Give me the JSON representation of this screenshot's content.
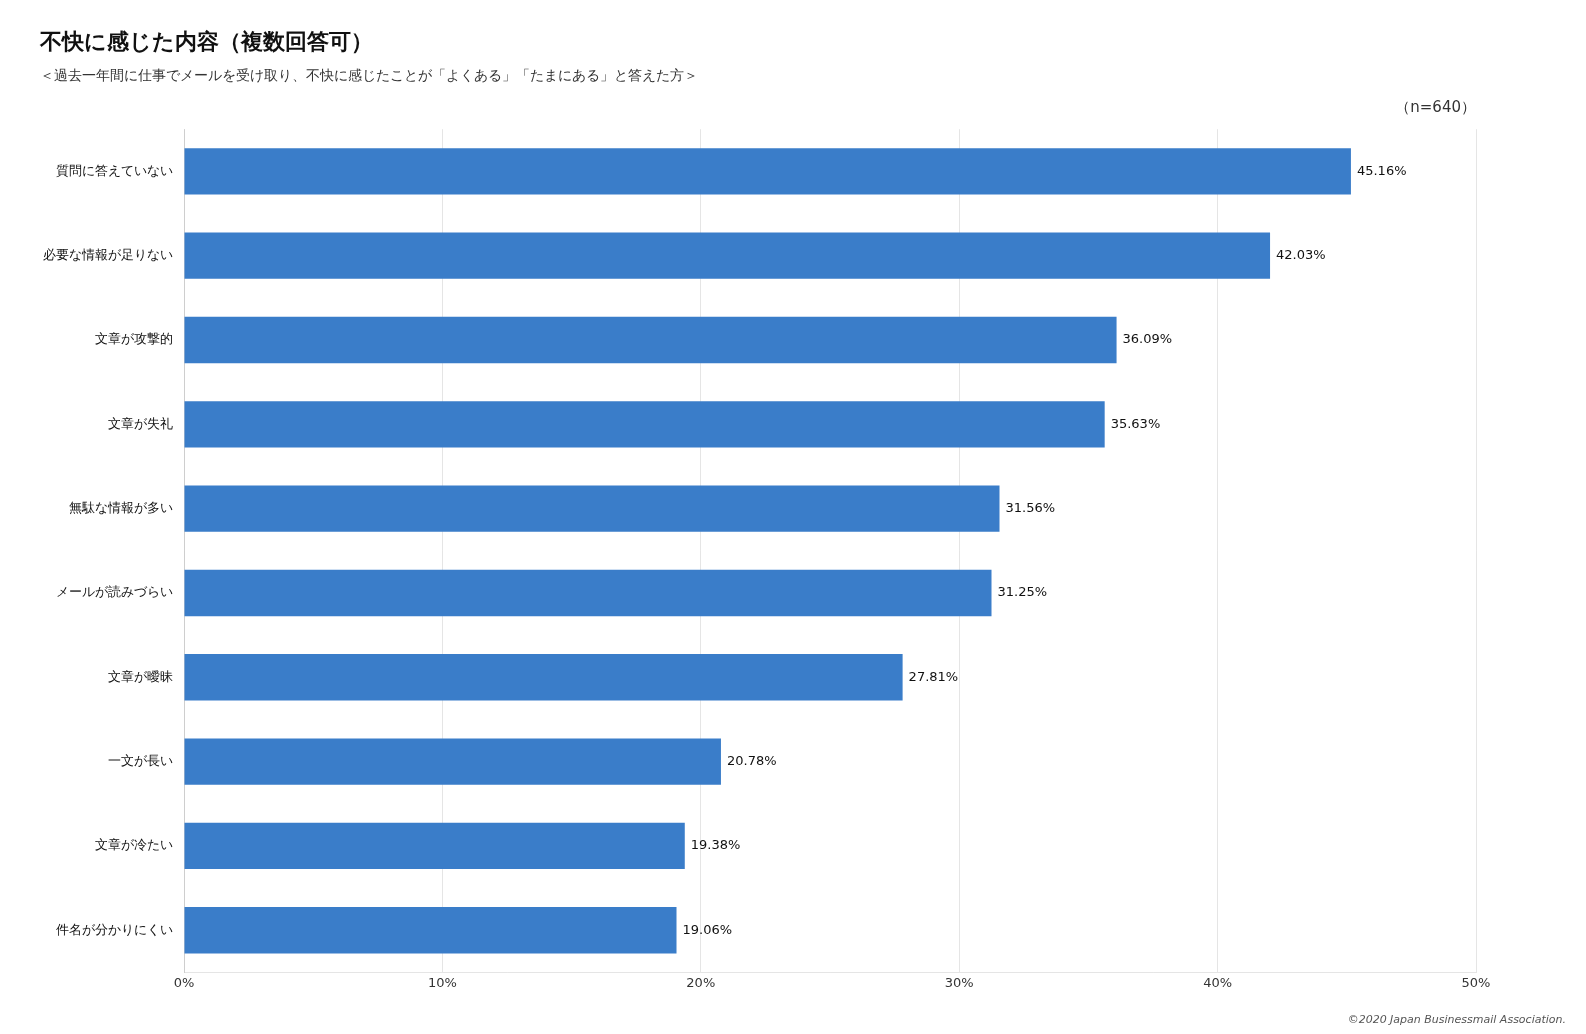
{
  "chart_data": {
    "type": "bar",
    "orientation": "horizontal",
    "title": "不快に感じた内容（複数回答可）",
    "subtitle": "＜過去一年間に仕事でメールを受け取り、不快に感じたことが「よくある」「たまにある」と答えた方＞",
    "annotations": [
      "（n=640）",
      "©2020 Japan Businessmail Association."
    ],
    "categories": [
      "質問に答えていない",
      "必要な情報が足りない",
      "文章が攻撃的",
      "文章が失礼",
      "無駄な情報が多い",
      "メールが読みづらい",
      "文章が曖昧",
      "一文が長い",
      "文章が冷たい",
      "件名が分かりにくい"
    ],
    "values": [
      45.16,
      42.03,
      36.09,
      35.63,
      31.56,
      31.25,
      27.81,
      20.78,
      19.38,
      19.06
    ],
    "value_labels": [
      "45.16%",
      "42.03%",
      "36.09%",
      "35.63%",
      "31.56%",
      "31.25%",
      "27.81%",
      "20.78%",
      "19.38%",
      "19.06%"
    ],
    "data_labels": true,
    "color": "#3A7DC9",
    "xlim": [
      0,
      50
    ],
    "xticks": [
      {
        "value": 0,
        "label": "0%"
      },
      {
        "value": 10,
        "label": "10%"
      },
      {
        "value": 20,
        "label": "20%"
      },
      {
        "value": 30,
        "label": "30%"
      },
      {
        "value": 40,
        "label": "40%"
      },
      {
        "value": 50,
        "label": "50%"
      }
    ],
    "grid": true
  }
}
